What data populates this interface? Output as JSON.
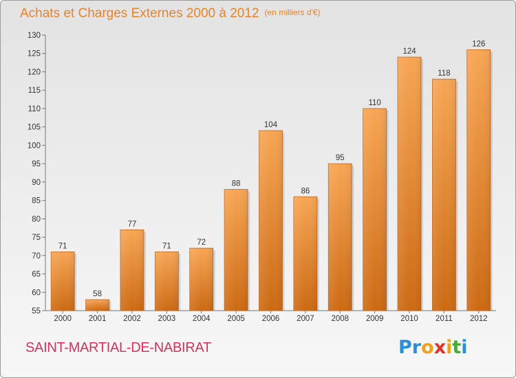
{
  "header": {
    "title": "Achats et Charges Externes 2000 à 2012",
    "unit": "(en milliers d'€)"
  },
  "footer": {
    "place": "SAINT-MARTIAL-DE-NABIRAT",
    "logo": {
      "letters": [
        "P",
        "r",
        "o",
        "x",
        "i",
        "t",
        "i"
      ],
      "colors": [
        "#2a8fd6",
        "#2a8fd6",
        "#f0a11c",
        "#e0312b",
        "#f0a11c",
        "#48a93b",
        "#2a8fd6"
      ]
    }
  },
  "colors": {
    "bar_top": "#f7a655",
    "bar_bottom": "#cc6a14",
    "bar_edge": "#c0631a"
  },
  "chart_data": {
    "type": "bar",
    "categories": [
      "2000",
      "2001",
      "2002",
      "2003",
      "2004",
      "2005",
      "2006",
      "2007",
      "2008",
      "2009",
      "2010",
      "2011",
      "2012"
    ],
    "values": [
      71,
      58,
      77,
      71,
      72,
      88,
      104,
      86,
      95,
      110,
      124,
      118,
      126
    ],
    "data_labels": [
      "71",
      "58",
      "77",
      "71",
      "72",
      "88",
      "104",
      "86",
      "95",
      "110",
      "124",
      "118",
      "126"
    ],
    "yticks": [
      55,
      60,
      65,
      70,
      75,
      80,
      85,
      90,
      95,
      100,
      105,
      110,
      115,
      120,
      125,
      130
    ],
    "ylim": [
      55,
      130
    ],
    "grid": false
  }
}
